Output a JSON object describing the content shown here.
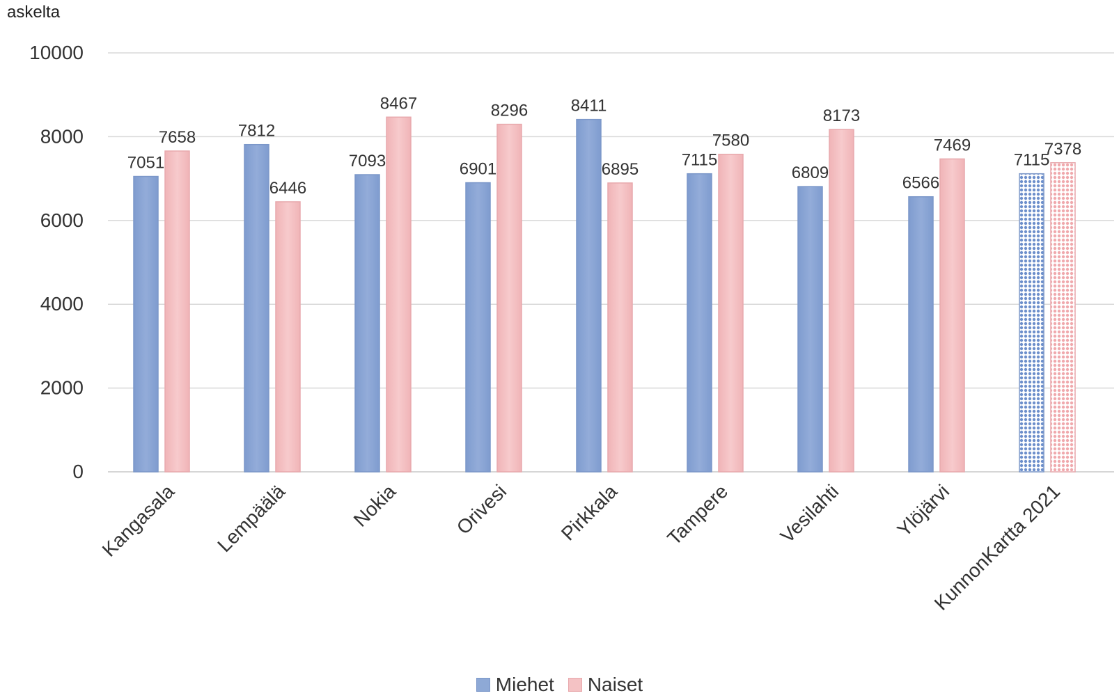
{
  "chart_data": {
    "type": "bar",
    "ylabel": "askelta",
    "xlabel": "",
    "title": "",
    "ylim": [
      0,
      10000
    ],
    "yticks": [
      0,
      2000,
      4000,
      6000,
      8000,
      10000
    ],
    "categories": [
      "Kangasala",
      "Lempäälä",
      "Nokia",
      "Orivesi",
      "Pirkkala",
      "Tampere",
      "Vesilahti",
      "Ylöjärvi",
      "KunnonKartta 2021"
    ],
    "series": [
      {
        "name": "Miehet",
        "color": "#8ea9d6",
        "values": [
          7051,
          7812,
          7093,
          6901,
          8411,
          7115,
          6809,
          6566,
          7115
        ]
      },
      {
        "name": "Naiset",
        "color": "#f4c2c4",
        "values": [
          7658,
          6446,
          8467,
          8296,
          6895,
          7580,
          8173,
          7469,
          7378
        ]
      }
    ],
    "patterned_category": "KunnonKartta 2021",
    "grid": true,
    "legend_position": "bottom"
  }
}
